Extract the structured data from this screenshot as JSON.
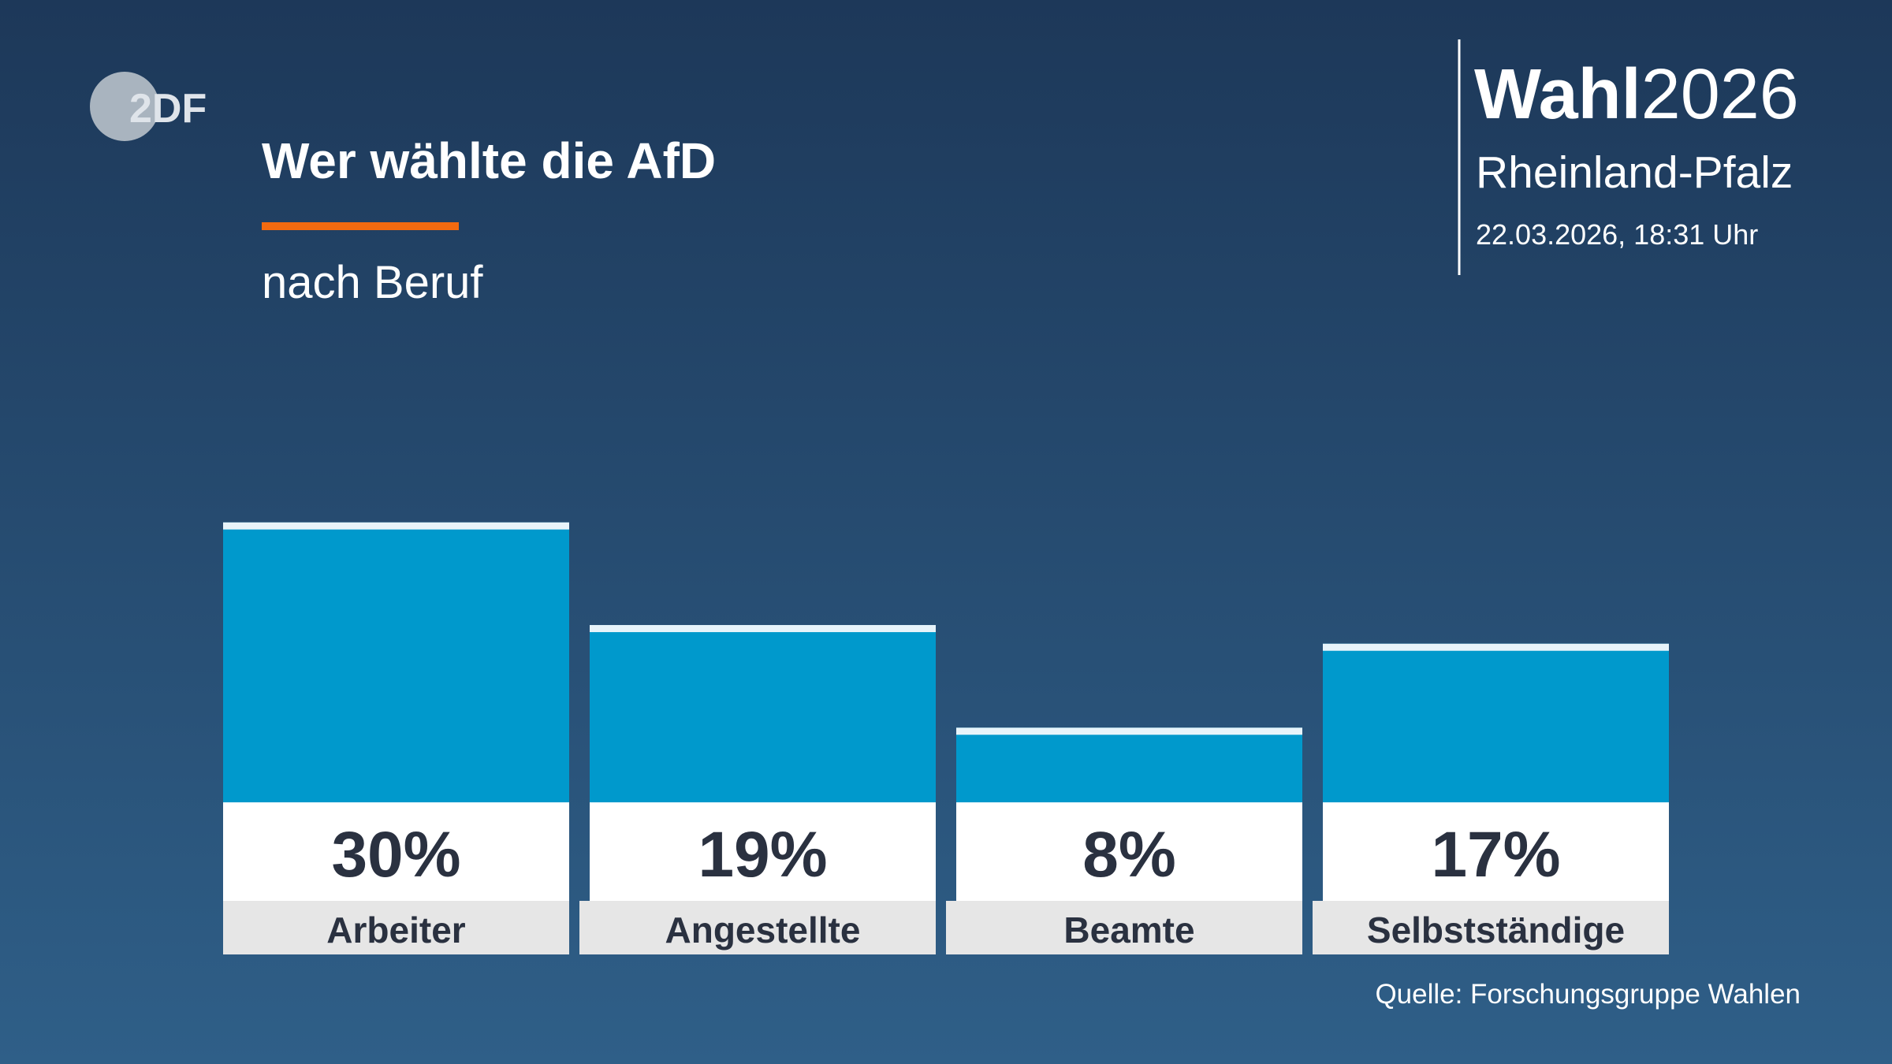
{
  "logo": "2DF",
  "brand": {
    "bold": "Wahl",
    "year": "2026",
    "region": "Rheinland-Pfalz",
    "timestamp": "22.03.2026, 18:31 Uhr"
  },
  "chart_data": {
    "type": "bar",
    "title": "Wer wählte die AfD",
    "subtitle": "nach Beruf",
    "categories": [
      "Arbeiter",
      "Angestellte",
      "Beamte",
      "Selbstständige"
    ],
    "values": [
      30,
      19,
      8,
      17
    ],
    "value_labels": [
      "30%",
      "19%",
      "8%",
      "17%"
    ],
    "color": "#0099cc",
    "source": "Quelle: Forschungsgruppe Wahlen"
  }
}
